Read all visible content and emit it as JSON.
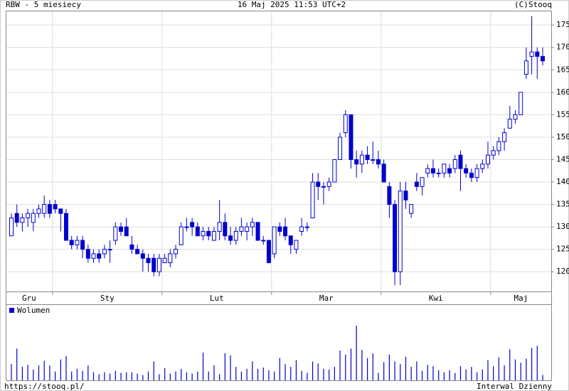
{
  "chart_data": {
    "type": "candlestick",
    "title": "RBW - 5 miesiecy",
    "subtitle": "16 Maj 2025 11:53 UTC+2",
    "source": "(C)Stooq",
    "footer_left": "https://stooq.pl/",
    "footer_right": "Interwal Dzienny",
    "color": "#0000cc",
    "grid": true,
    "ylim": [
      115.6,
      178.2
    ],
    "yticks": [
      120,
      125,
      130,
      135,
      140,
      145,
      150,
      155,
      160,
      165,
      170,
      175
    ],
    "months": [
      {
        "label": "Gru",
        "index": 0
      },
      {
        "label": "Sty",
        "index": 8
      },
      {
        "label": "Lut",
        "index": 28
      },
      {
        "label": "Mar",
        "index": 48
      },
      {
        "label": "Kwi",
        "index": 68
      },
      {
        "label": "Maj",
        "index": 88
      }
    ],
    "candles": [
      [
        128,
        133,
        128,
        132
      ],
      [
        133,
        135,
        130,
        131
      ],
      [
        131,
        133,
        129,
        132
      ],
      [
        132,
        134,
        130,
        133
      ],
      [
        131,
        134,
        129,
        133
      ],
      [
        133,
        135,
        132,
        134
      ],
      [
        133,
        137,
        132,
        135
      ],
      [
        135,
        136,
        132,
        133
      ],
      [
        135,
        136,
        133,
        134
      ],
      [
        134,
        134,
        129,
        133
      ],
      [
        133,
        134,
        127,
        127
      ],
      [
        127,
        128,
        125,
        126
      ],
      [
        126,
        128,
        125,
        127
      ],
      [
        127,
        128,
        123,
        125
      ],
      [
        125,
        126,
        122,
        123
      ],
      [
        123,
        125,
        122,
        124
      ],
      [
        124,
        125,
        122,
        123
      ],
      [
        124,
        126,
        123,
        125
      ],
      [
        125,
        127,
        122,
        125
      ],
      [
        127,
        131,
        126,
        130
      ],
      [
        130,
        131,
        128,
        129
      ],
      [
        130,
        132,
        128,
        128
      ],
      [
        126,
        128,
        124,
        125
      ],
      [
        125,
        126,
        124,
        124
      ],
      [
        124,
        125,
        120,
        123
      ],
      [
        123,
        124,
        120,
        122
      ],
      [
        123,
        124,
        119,
        120
      ],
      [
        120,
        124,
        119,
        123
      ],
      [
        122,
        124,
        122,
        123
      ],
      [
        122,
        125,
        121,
        124
      ],
      [
        124,
        126,
        123,
        125
      ],
      [
        126,
        131,
        126,
        130
      ],
      [
        130,
        132,
        129,
        130
      ],
      [
        131,
        132,
        128,
        130
      ],
      [
        130,
        131,
        128,
        128
      ],
      [
        128,
        130,
        127,
        129
      ],
      [
        129,
        130,
        127,
        128
      ],
      [
        127,
        130,
        127,
        129
      ],
      [
        129,
        136,
        127,
        131
      ],
      [
        131,
        133,
        127,
        128
      ],
      [
        128,
        130,
        126,
        127
      ],
      [
        127,
        130,
        126,
        129
      ],
      [
        129,
        132,
        128,
        130
      ],
      [
        129,
        131,
        127,
        130
      ],
      [
        130,
        132,
        128,
        131
      ],
      [
        131,
        131,
        127,
        127
      ],
      [
        127,
        128,
        126,
        127
      ],
      [
        127,
        127,
        122,
        122
      ],
      [
        124,
        130,
        123,
        130
      ],
      [
        130,
        131,
        128,
        129
      ],
      [
        130,
        132,
        127,
        128
      ],
      [
        128,
        128,
        124,
        126
      ],
      [
        125,
        127,
        124,
        127
      ],
      [
        129,
        132,
        128,
        130
      ],
      [
        130,
        131,
        129,
        130
      ],
      [
        132,
        142,
        132,
        140
      ],
      [
        140,
        142,
        136,
        139
      ],
      [
        139,
        140,
        135,
        139
      ],
      [
        139,
        141,
        138,
        140
      ],
      [
        140,
        145,
        140,
        145
      ],
      [
        145,
        151,
        145,
        150
      ],
      [
        151,
        156,
        150,
        155
      ],
      [
        155,
        155,
        143,
        145
      ],
      [
        145,
        147,
        141,
        144
      ],
      [
        144,
        147,
        142,
        146
      ],
      [
        146,
        148,
        144,
        145
      ],
      [
        145,
        149,
        144,
        145
      ],
      [
        145,
        147,
        143,
        144
      ],
      [
        144,
        145,
        140,
        140
      ],
      [
        139,
        140,
        132,
        135
      ],
      [
        135,
        136,
        117,
        120
      ],
      [
        120,
        140,
        117,
        138
      ],
      [
        138,
        140,
        134,
        136
      ],
      [
        133,
        135,
        132,
        135
      ],
      [
        140,
        142,
        138,
        139
      ],
      [
        139,
        141,
        137,
        141
      ],
      [
        142,
        144,
        141,
        143
      ],
      [
        143,
        145,
        141,
        142
      ],
      [
        142,
        143,
        141,
        142
      ],
      [
        142,
        144,
        141,
        144
      ],
      [
        143,
        144,
        141,
        142
      ],
      [
        143,
        146,
        142,
        145
      ],
      [
        146,
        147,
        138,
        143
      ],
      [
        143,
        144,
        141,
        142
      ],
      [
        142,
        143,
        140,
        141
      ],
      [
        141,
        144,
        140,
        143
      ],
      [
        143,
        145,
        142,
        144
      ],
      [
        144,
        149,
        143,
        146
      ],
      [
        146,
        148,
        145,
        147
      ],
      [
        147,
        150,
        146,
        149
      ],
      [
        149,
        152,
        147,
        151
      ],
      [
        152,
        157,
        152,
        154
      ],
      [
        154,
        156,
        153,
        155
      ],
      [
        155,
        160,
        155,
        160
      ],
      [
        164,
        170,
        163,
        167
      ],
      [
        168,
        177,
        164,
        169
      ],
      [
        169,
        170,
        163,
        168
      ],
      [
        168,
        170,
        166,
        167
      ]
    ],
    "volume": {
      "name": "Wolumen",
      "ylim": [
        0,
        100
      ],
      "values": [
        24,
        47,
        20,
        23,
        16,
        22,
        29,
        22,
        13,
        31,
        36,
        13,
        17,
        14,
        22,
        12,
        9,
        12,
        10,
        14,
        11,
        12,
        12,
        10,
        8,
        13,
        28,
        9,
        18,
        10,
        13,
        17,
        12,
        10,
        13,
        41,
        13,
        22,
        9,
        40,
        37,
        20,
        13,
        17,
        28,
        17,
        19,
        15,
        13,
        33,
        24,
        20,
        30,
        14,
        11,
        28,
        25,
        17,
        16,
        20,
        44,
        38,
        47,
        81,
        45,
        33,
        40,
        11,
        27,
        38,
        28,
        24,
        35,
        20,
        28,
        14,
        23,
        21,
        15,
        12,
        15,
        11,
        21,
        16,
        20,
        12,
        16,
        30,
        21,
        34,
        22,
        46,
        31,
        26,
        32,
        48,
        51,
        8
      ]
    }
  }
}
